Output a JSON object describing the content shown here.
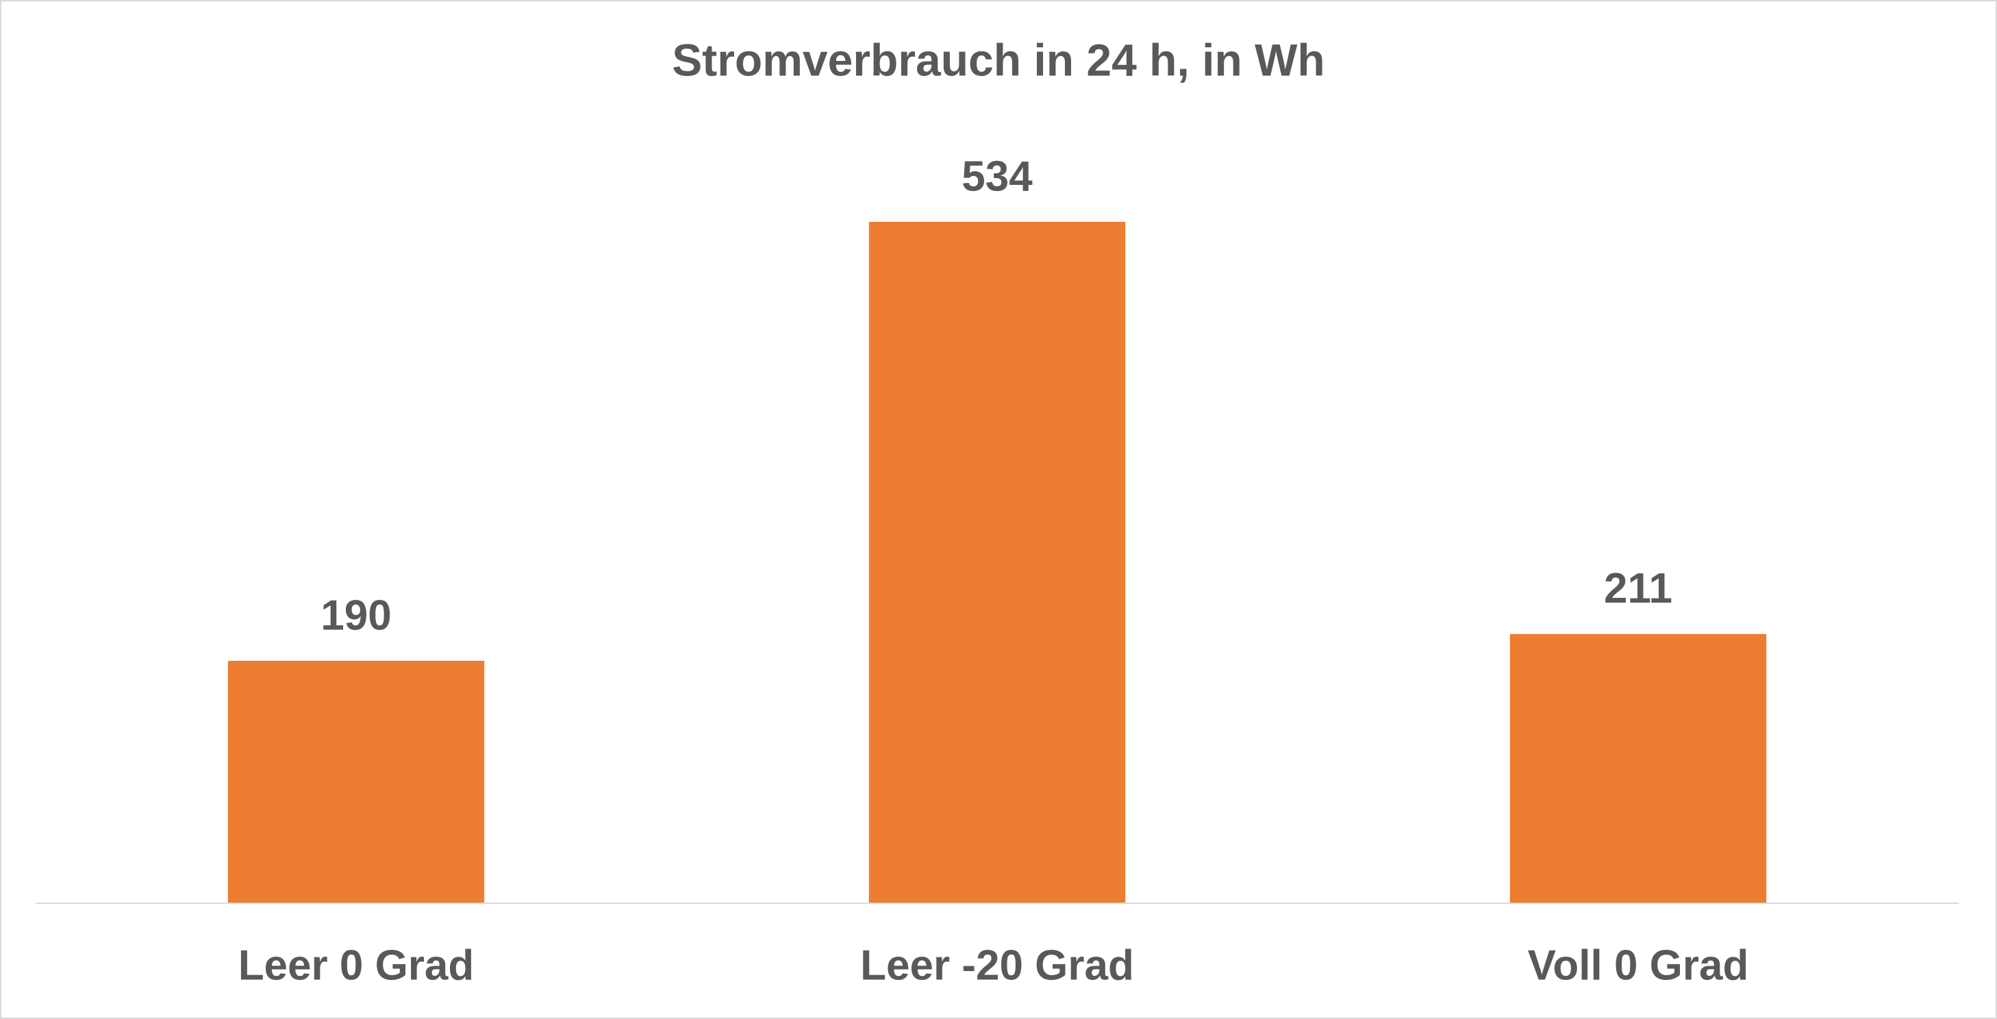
{
  "chart_data": {
    "type": "bar",
    "title": "Stromverbrauch in 24 h, in Wh",
    "categories": [
      "Leer 0 Grad",
      "Leer -20 Grad",
      "Voll 0 Grad"
    ],
    "values": [
      190,
      534,
      211
    ],
    "color": "#ed7d31"
  }
}
